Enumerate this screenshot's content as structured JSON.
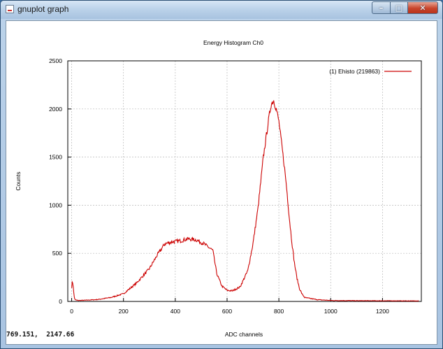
{
  "window": {
    "title": "gnuplot graph",
    "controls": {
      "minimize": "–",
      "maximize": "□",
      "close": "✕"
    },
    "icon": "gnuplot-app-icon"
  },
  "statusbar": {
    "coordinates": "769.151,  2147.66"
  },
  "colors": {
    "series": "#cc0000",
    "grid": "#b8b8b8",
    "accent": "#3a6ea5"
  },
  "chart_data": {
    "type": "line",
    "title": "Energy Histogram Ch0",
    "xlabel": "ADC channels",
    "ylabel": "Counts",
    "xlim": [
      -15,
      1350
    ],
    "ylim": [
      0,
      2500
    ],
    "xticks": [
      0,
      200,
      400,
      600,
      800,
      1000,
      1200
    ],
    "yticks": [
      0,
      500,
      1000,
      1500,
      2000,
      2500
    ],
    "grid": true,
    "legend_placement": "top-right",
    "series": [
      {
        "name": "(1) Ehisto (219863)",
        "color": "#cc0000",
        "x": [
          0,
          3,
          6,
          9,
          12,
          15,
          25,
          50,
          100,
          150,
          200,
          250,
          300,
          330,
          360,
          390,
          420,
          450,
          480,
          510,
          530,
          545,
          560,
          580,
          600,
          620,
          650,
          680,
          700,
          720,
          740,
          760,
          770,
          780,
          790,
          800,
          805,
          810,
          820,
          830,
          840,
          850,
          860,
          870,
          880,
          890,
          900,
          950,
          1000,
          1100,
          1200,
          1300,
          1340
        ],
        "y": [
          150,
          215,
          160,
          60,
          25,
          15,
          10,
          12,
          20,
          40,
          80,
          190,
          340,
          480,
          600,
          620,
          630,
          650,
          640,
          600,
          560,
          530,
          290,
          160,
          115,
          110,
          150,
          320,
          600,
          980,
          1500,
          1880,
          2050,
          2090,
          2000,
          1870,
          1760,
          1650,
          1430,
          1180,
          880,
          620,
          400,
          240,
          130,
          75,
          40,
          18,
          10,
          8,
          7,
          6,
          5
        ]
      }
    ]
  }
}
